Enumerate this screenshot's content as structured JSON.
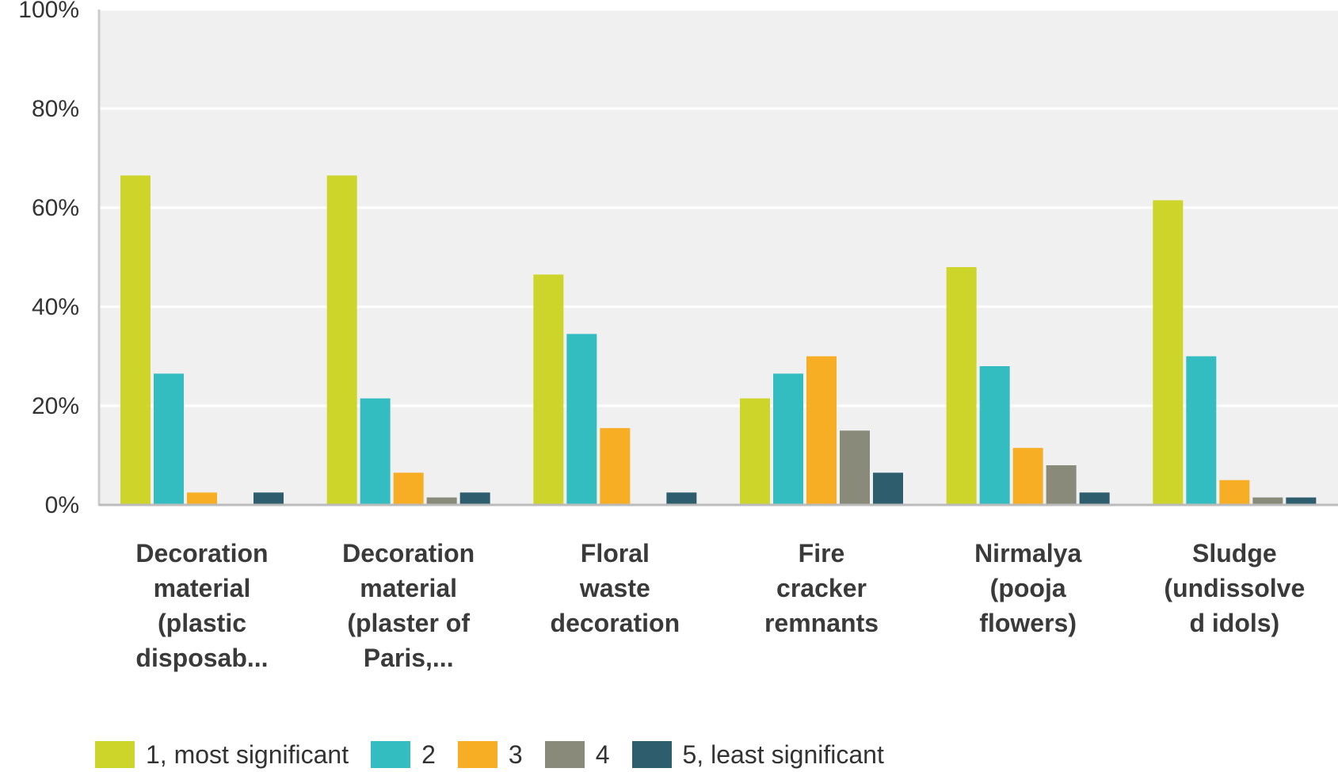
{
  "chart_data": {
    "type": "bar",
    "categories": [
      "Decoration\nmaterial\n(plastic\ndisposab...",
      "Decoration\nmaterial\n(plaster of\nParis,...",
      "Floral\nwaste\ndecoration",
      "Fire\ncracker\nremnants",
      "Nirmalya\n(pooja\nflowers)",
      "Sludge\n(undissolve\nd idols)"
    ],
    "series": [
      {
        "name": "1, most significant",
        "color": "#cdd52a",
        "values": [
          66.5,
          66.5,
          46.5,
          21.5,
          48,
          61.5
        ]
      },
      {
        "name": "2",
        "color": "#33bdc1",
        "values": [
          26.5,
          21.5,
          34.5,
          26.5,
          28,
          30
        ]
      },
      {
        "name": "3",
        "color": "#f7ae24",
        "values": [
          2.5,
          6.5,
          15.5,
          30,
          11.5,
          5
        ]
      },
      {
        "name": "4",
        "color": "#8a8a7a",
        "values": [
          0,
          1.5,
          0,
          15,
          8,
          1.5
        ]
      },
      {
        "name": "5, least significant",
        "color": "#2e5e6e",
        "values": [
          2.5,
          2.5,
          2.5,
          6.5,
          2.5,
          1.5
        ]
      }
    ],
    "ylim": [
      0,
      100
    ],
    "yticks": [
      "0%",
      "20%",
      "40%",
      "60%",
      "80%",
      "100%"
    ],
    "tick_values": [
      0,
      20,
      40,
      60,
      80,
      100
    ],
    "legend_position": "bottom-left",
    "grid": true
  }
}
